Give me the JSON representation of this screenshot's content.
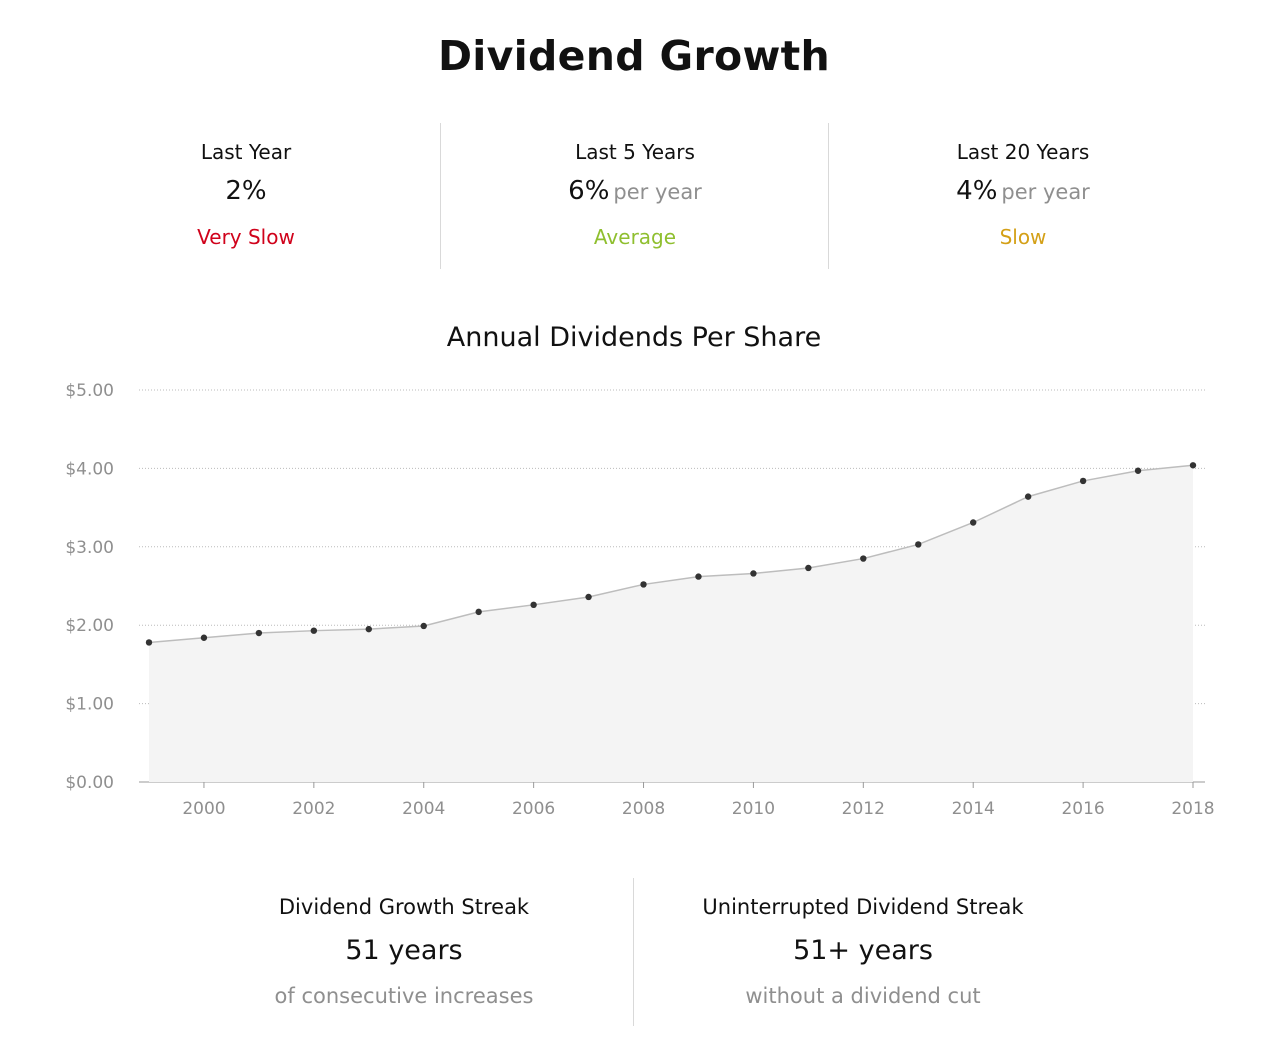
{
  "title": "Dividend Growth",
  "stats": [
    {
      "label": "Last Year",
      "value": "2%",
      "suffix": "",
      "rating": "Very Slow",
      "rating_color": "#d0021b"
    },
    {
      "label": "Last 5 Years",
      "value": "6%",
      "suffix": "per year",
      "rating": "Average",
      "rating_color": "#8fbf2f"
    },
    {
      "label": "Last 20 Years",
      "value": "4%",
      "suffix": "per year",
      "rating": "Slow",
      "rating_color": "#d4a017"
    }
  ],
  "chart_data": {
    "type": "area",
    "title": "Annual Dividends Per Share",
    "xlabel": "",
    "ylabel": "",
    "x": [
      1999,
      2000,
      2001,
      2002,
      2003,
      2004,
      2005,
      2006,
      2007,
      2008,
      2009,
      2010,
      2011,
      2012,
      2013,
      2014,
      2015,
      2016,
      2017,
      2018
    ],
    "values": [
      1.78,
      1.84,
      1.9,
      1.93,
      1.95,
      1.99,
      2.17,
      2.26,
      2.36,
      2.52,
      2.62,
      2.66,
      2.73,
      2.85,
      3.03,
      3.31,
      3.64,
      3.84,
      3.97,
      4.04
    ],
    "ylim": [
      0,
      5
    ],
    "y_ticks": [
      0,
      1,
      2,
      3,
      4,
      5
    ],
    "y_tick_labels": [
      "$0.00",
      "$1.00",
      "$2.00",
      "$3.00",
      "$4.00",
      "$5.00"
    ],
    "x_ticks": [
      2000,
      2002,
      2004,
      2006,
      2008,
      2010,
      2012,
      2014,
      2016,
      2018
    ],
    "x_tick_labels": [
      "2000",
      "2002",
      "2004",
      "2006",
      "2008",
      "2010",
      "2012",
      "2014",
      "2016",
      "2018"
    ],
    "grid": true,
    "colors": {
      "line": "#bdbdbd",
      "fill": "#f4f4f4",
      "point": "#333333",
      "grid": "#bbbbbb",
      "axis_text": "#8f8f8f"
    }
  },
  "streaks": [
    {
      "label": "Dividend Growth Streak",
      "value": "51 years",
      "sub": "of consecutive increases"
    },
    {
      "label": "Uninterrupted Dividend Streak",
      "value": "51+ years",
      "sub": "without a dividend cut"
    }
  ]
}
